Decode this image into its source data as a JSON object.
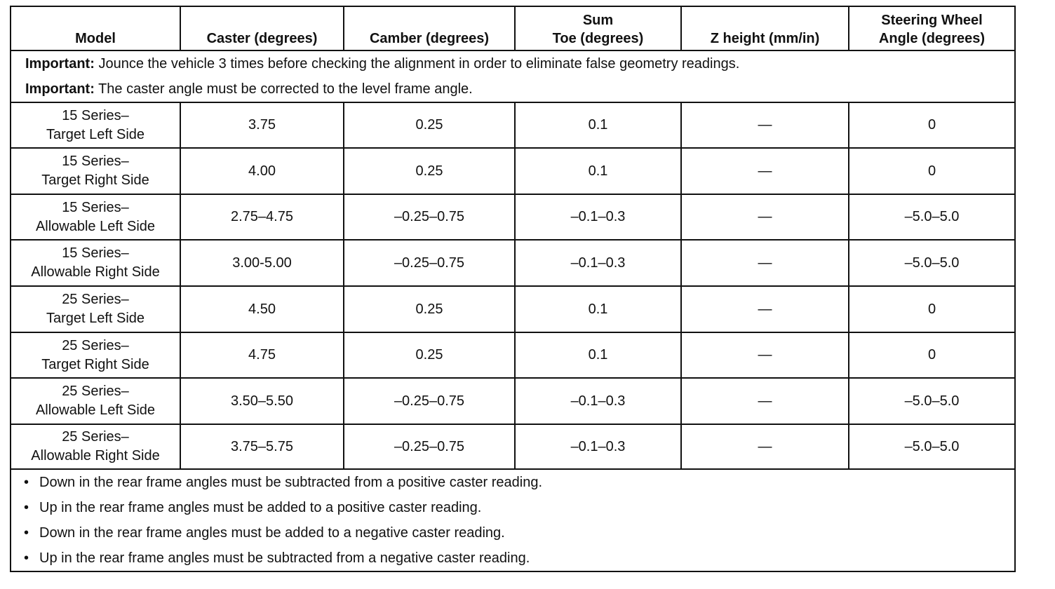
{
  "table": {
    "headers": [
      [
        "Model"
      ],
      [
        "Caster (degrees)"
      ],
      [
        "Camber (degrees)"
      ],
      [
        "Sum",
        "Toe (degrees)"
      ],
      [
        "Z  height (mm/in)"
      ],
      [
        "Steering Wheel",
        "Angle (degrees)"
      ]
    ],
    "important": [
      {
        "label": "Important:",
        "text": "Jounce the vehicle 3 times before checking the alignment in order to eliminate false geometry readings."
      },
      {
        "label": "Important:",
        "text": "The caster angle must be corrected to the level frame angle."
      }
    ],
    "rows": [
      [
        [
          "15 Series–",
          "Target Left Side"
        ],
        "3.75",
        "0.25",
        "0.1",
        "—",
        "0"
      ],
      [
        [
          "15 Series–",
          "Target Right Side"
        ],
        "4.00",
        "0.25",
        "0.1",
        "—",
        "0"
      ],
      [
        [
          "15 Series–",
          "Allowable Left Side"
        ],
        "2.75–4.75",
        "–0.25–0.75",
        "–0.1–0.3",
        "—",
        "–5.0–5.0"
      ],
      [
        [
          "15 Series–",
          "Allowable Right Side"
        ],
        "3.00-5.00",
        "–0.25–0.75",
        "–0.1–0.3",
        "—",
        "–5.0–5.0"
      ],
      [
        [
          "25 Series–",
          "Target Left Side"
        ],
        "4.50",
        "0.25",
        "0.1",
        "—",
        "0"
      ],
      [
        [
          "25 Series–",
          "Target Right Side"
        ],
        "4.75",
        "0.25",
        "0.1",
        "—",
        "0"
      ],
      [
        [
          "25 Series–",
          "Allowable Left Side"
        ],
        "3.50–5.50",
        "–0.25–0.75",
        "–0.1–0.3",
        "—",
        "–5.0–5.0"
      ],
      [
        [
          "25 Series–",
          "Allowable Right Side"
        ],
        "3.75–5.75",
        "–0.25–0.75",
        "–0.1–0.3",
        "—",
        "–5.0–5.0"
      ]
    ],
    "notes": [
      "Down in the rear frame angles must be subtracted from a positive caster reading.",
      "Up in the rear frame angles must be added to a positive caster reading.",
      "Down in the rear frame angles must be added to a negative caster reading.",
      "Up in the rear frame angles must be subtracted from a negative caster reading."
    ]
  }
}
